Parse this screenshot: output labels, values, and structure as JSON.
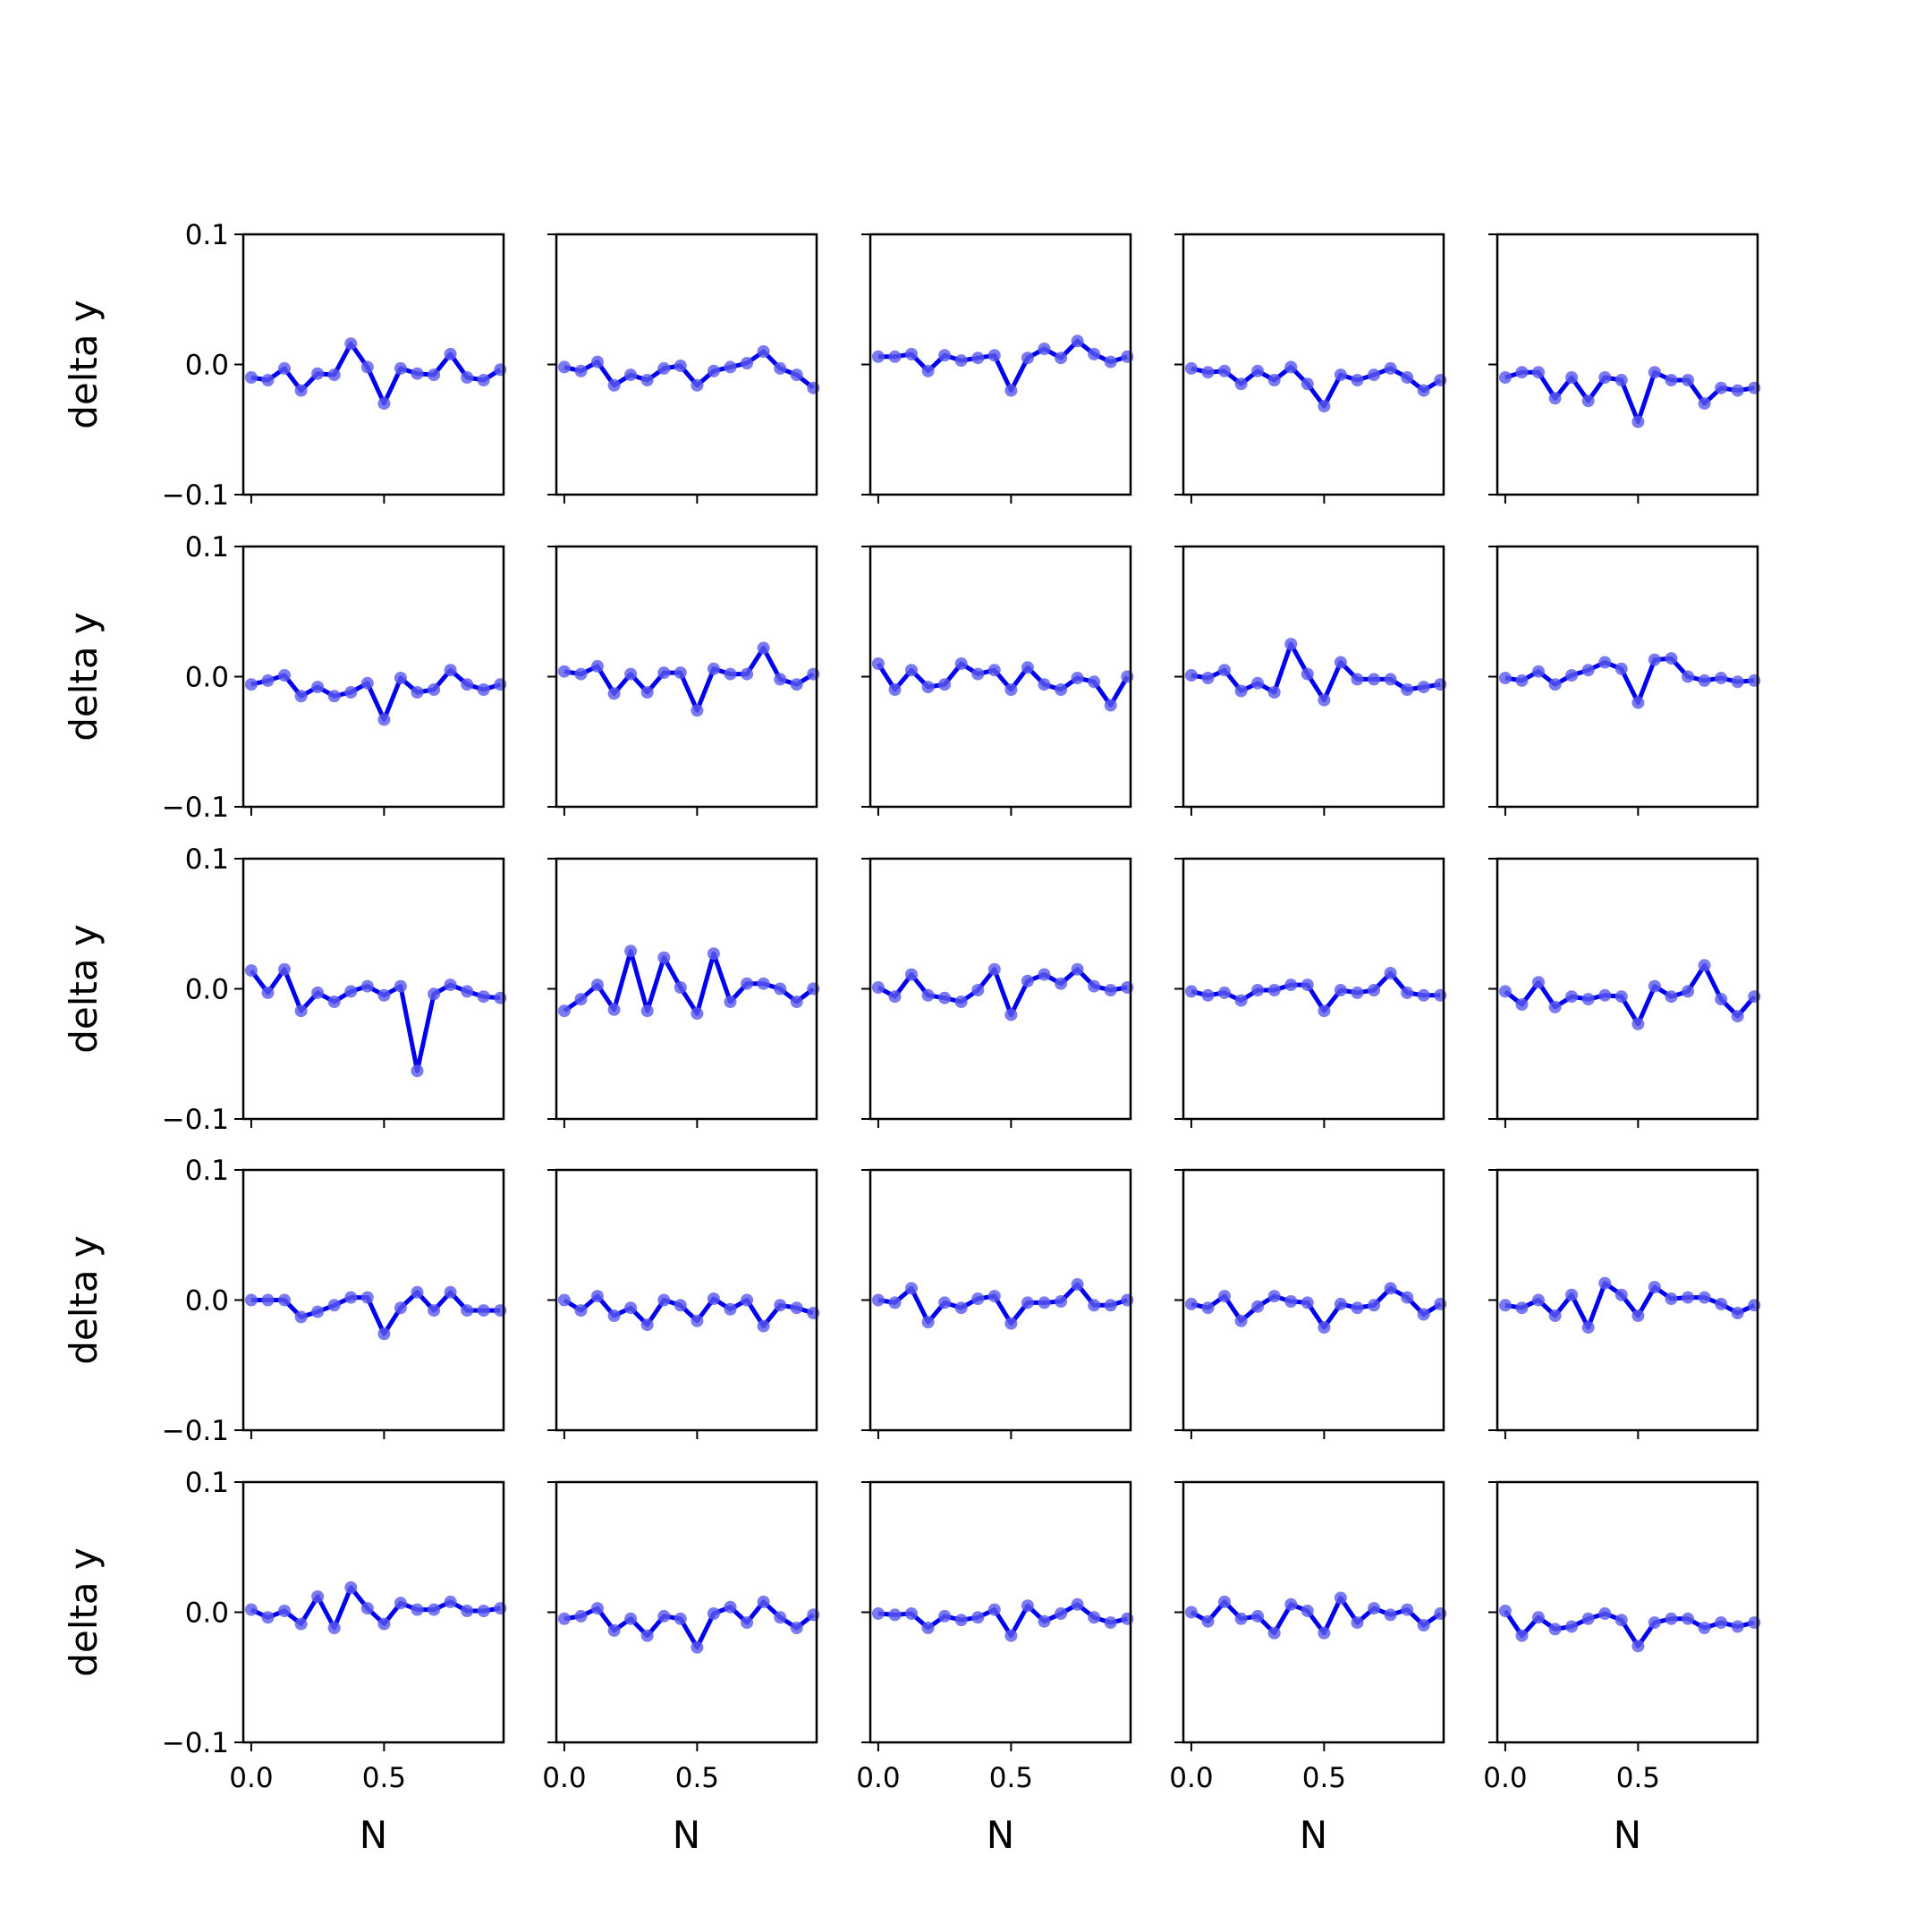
{
  "chart_data": {
    "type": "line",
    "layout": "5x5 grid of small multiples",
    "line_color": "#0000ee",
    "marker_color": "#5a5aee",
    "xlabel": "N",
    "ylabel": "delta y",
    "xlim": [
      -0.03,
      0.95
    ],
    "ylim": [
      -0.1,
      0.1
    ],
    "xticks": [
      0.0,
      0.5
    ],
    "xtick_labels": [
      "0.0",
      "0.5"
    ],
    "yticks": [
      -0.1,
      0.0,
      0.1
    ],
    "ytick_labels": [
      "−0.1",
      "0.0",
      "0.1"
    ],
    "x": [
      0.0,
      0.0625,
      0.125,
      0.1875,
      0.25,
      0.3125,
      0.375,
      0.4375,
      0.5,
      0.5625,
      0.625,
      0.6875,
      0.75,
      0.8125,
      0.875,
      0.9375
    ],
    "panels": [
      {
        "values": [
          -0.01,
          -0.012,
          -0.003,
          -0.02,
          -0.007,
          -0.008,
          0.016,
          -0.002,
          -0.03,
          -0.003,
          -0.007,
          -0.008,
          0.008,
          -0.01,
          -0.012,
          -0.004
        ]
      },
      {
        "values": [
          -0.002,
          -0.005,
          0.002,
          -0.016,
          -0.008,
          -0.012,
          -0.003,
          -0.001,
          -0.016,
          -0.005,
          -0.002,
          0.001,
          0.01,
          -0.003,
          -0.008,
          -0.018
        ]
      },
      {
        "values": [
          0.006,
          0.006,
          0.008,
          -0.005,
          0.007,
          0.003,
          0.005,
          0.007,
          -0.02,
          0.005,
          0.012,
          0.005,
          0.018,
          0.008,
          0.002,
          0.006
        ]
      },
      {
        "values": [
          -0.003,
          -0.006,
          -0.005,
          -0.015,
          -0.005,
          -0.012,
          -0.002,
          -0.015,
          -0.032,
          -0.008,
          -0.012,
          -0.008,
          -0.003,
          -0.01,
          -0.02,
          -0.012
        ]
      },
      {
        "values": [
          -0.01,
          -0.006,
          -0.006,
          -0.026,
          -0.01,
          -0.028,
          -0.01,
          -0.012,
          -0.044,
          -0.006,
          -0.012,
          -0.012,
          -0.03,
          -0.018,
          -0.02,
          -0.018
        ]
      },
      {
        "values": [
          -0.006,
          -0.003,
          0.001,
          -0.015,
          -0.008,
          -0.015,
          -0.012,
          -0.005,
          -0.033,
          -0.001,
          -0.012,
          -0.01,
          0.005,
          -0.006,
          -0.01,
          -0.006
        ]
      },
      {
        "values": [
          0.004,
          0.002,
          0.008,
          -0.013,
          0.002,
          -0.012,
          0.003,
          0.003,
          -0.026,
          0.006,
          0.002,
          0.002,
          0.022,
          -0.002,
          -0.006,
          0.002
        ]
      },
      {
        "values": [
          0.01,
          -0.01,
          0.005,
          -0.008,
          -0.006,
          0.01,
          0.002,
          0.005,
          -0.01,
          0.007,
          -0.006,
          -0.01,
          -0.001,
          -0.004,
          -0.022,
          0.0
        ]
      },
      {
        "values": [
          0.001,
          -0.001,
          0.005,
          -0.011,
          -0.005,
          -0.012,
          0.025,
          0.002,
          -0.018,
          0.011,
          -0.002,
          -0.002,
          -0.002,
          -0.01,
          -0.008,
          -0.006
        ]
      },
      {
        "values": [
          -0.001,
          -0.003,
          0.004,
          -0.006,
          0.001,
          0.005,
          0.011,
          0.006,
          -0.02,
          0.013,
          0.014,
          0.0,
          -0.003,
          -0.001,
          -0.004,
          -0.003
        ]
      },
      {
        "values": [
          0.014,
          -0.003,
          0.015,
          -0.017,
          -0.003,
          -0.01,
          -0.002,
          0.002,
          -0.005,
          0.002,
          -0.063,
          -0.004,
          0.003,
          -0.002,
          -0.006,
          -0.007
        ]
      },
      {
        "values": [
          -0.017,
          -0.008,
          0.003,
          -0.016,
          0.029,
          -0.017,
          0.024,
          0.001,
          -0.019,
          0.027,
          -0.01,
          0.004,
          0.004,
          0.0,
          -0.01,
          0.0
        ]
      },
      {
        "values": [
          0.001,
          -0.006,
          0.011,
          -0.005,
          -0.007,
          -0.01,
          -0.001,
          0.015,
          -0.02,
          0.006,
          0.011,
          0.004,
          0.015,
          0.002,
          -0.001,
          0.001
        ]
      },
      {
        "values": [
          -0.002,
          -0.005,
          -0.003,
          -0.009,
          -0.001,
          -0.001,
          0.003,
          0.003,
          -0.017,
          -0.001,
          -0.003,
          -0.001,
          0.012,
          -0.003,
          -0.005,
          -0.005
        ]
      },
      {
        "values": [
          -0.002,
          -0.012,
          0.005,
          -0.014,
          -0.006,
          -0.008,
          -0.005,
          -0.006,
          -0.027,
          0.002,
          -0.006,
          -0.002,
          0.018,
          -0.008,
          -0.021,
          -0.006
        ]
      },
      {
        "values": [
          0.0,
          0.0,
          0.0,
          -0.013,
          -0.009,
          -0.004,
          0.002,
          0.002,
          -0.026,
          -0.006,
          0.006,
          -0.008,
          0.006,
          -0.008,
          -0.008,
          -0.008
        ]
      },
      {
        "values": [
          0.0,
          -0.008,
          0.003,
          -0.012,
          -0.006,
          -0.019,
          0.0,
          -0.004,
          -0.016,
          0.001,
          -0.007,
          0.0,
          -0.02,
          -0.004,
          -0.006,
          -0.01
        ]
      },
      {
        "values": [
          0.0,
          -0.002,
          0.009,
          -0.017,
          -0.002,
          -0.006,
          0.001,
          0.003,
          -0.018,
          -0.002,
          -0.002,
          -0.001,
          0.012,
          -0.004,
          -0.004,
          0.0
        ]
      },
      {
        "values": [
          -0.003,
          -0.006,
          0.003,
          -0.016,
          -0.005,
          0.003,
          -0.001,
          -0.002,
          -0.021,
          -0.003,
          -0.006,
          -0.004,
          0.009,
          0.002,
          -0.011,
          -0.003
        ]
      },
      {
        "values": [
          -0.004,
          -0.006,
          0.0,
          -0.012,
          0.004,
          -0.021,
          0.013,
          0.004,
          -0.012,
          0.01,
          0.001,
          0.002,
          0.002,
          -0.003,
          -0.01,
          -0.004
        ]
      },
      {
        "values": [
          0.002,
          -0.004,
          0.001,
          -0.009,
          0.012,
          -0.012,
          0.019,
          0.003,
          -0.009,
          0.007,
          0.002,
          0.002,
          0.008,
          0.001,
          0.001,
          0.003
        ]
      },
      {
        "values": [
          -0.005,
          -0.003,
          0.003,
          -0.014,
          -0.005,
          -0.018,
          -0.003,
          -0.005,
          -0.027,
          -0.001,
          0.004,
          -0.008,
          0.008,
          -0.004,
          -0.012,
          -0.002
        ]
      },
      {
        "values": [
          -0.001,
          -0.002,
          -0.001,
          -0.012,
          -0.003,
          -0.006,
          -0.004,
          0.002,
          -0.018,
          0.005,
          -0.007,
          -0.001,
          0.006,
          -0.004,
          -0.008,
          -0.005
        ]
      },
      {
        "values": [
          0.0,
          -0.007,
          0.008,
          -0.005,
          -0.003,
          -0.016,
          0.006,
          0.001,
          -0.016,
          0.011,
          -0.008,
          0.003,
          -0.002,
          0.002,
          -0.01,
          -0.001
        ]
      },
      {
        "values": [
          0.001,
          -0.018,
          -0.004,
          -0.013,
          -0.011,
          -0.005,
          -0.001,
          -0.006,
          -0.026,
          -0.008,
          -0.005,
          -0.005,
          -0.012,
          -0.008,
          -0.011,
          -0.008
        ]
      }
    ]
  }
}
